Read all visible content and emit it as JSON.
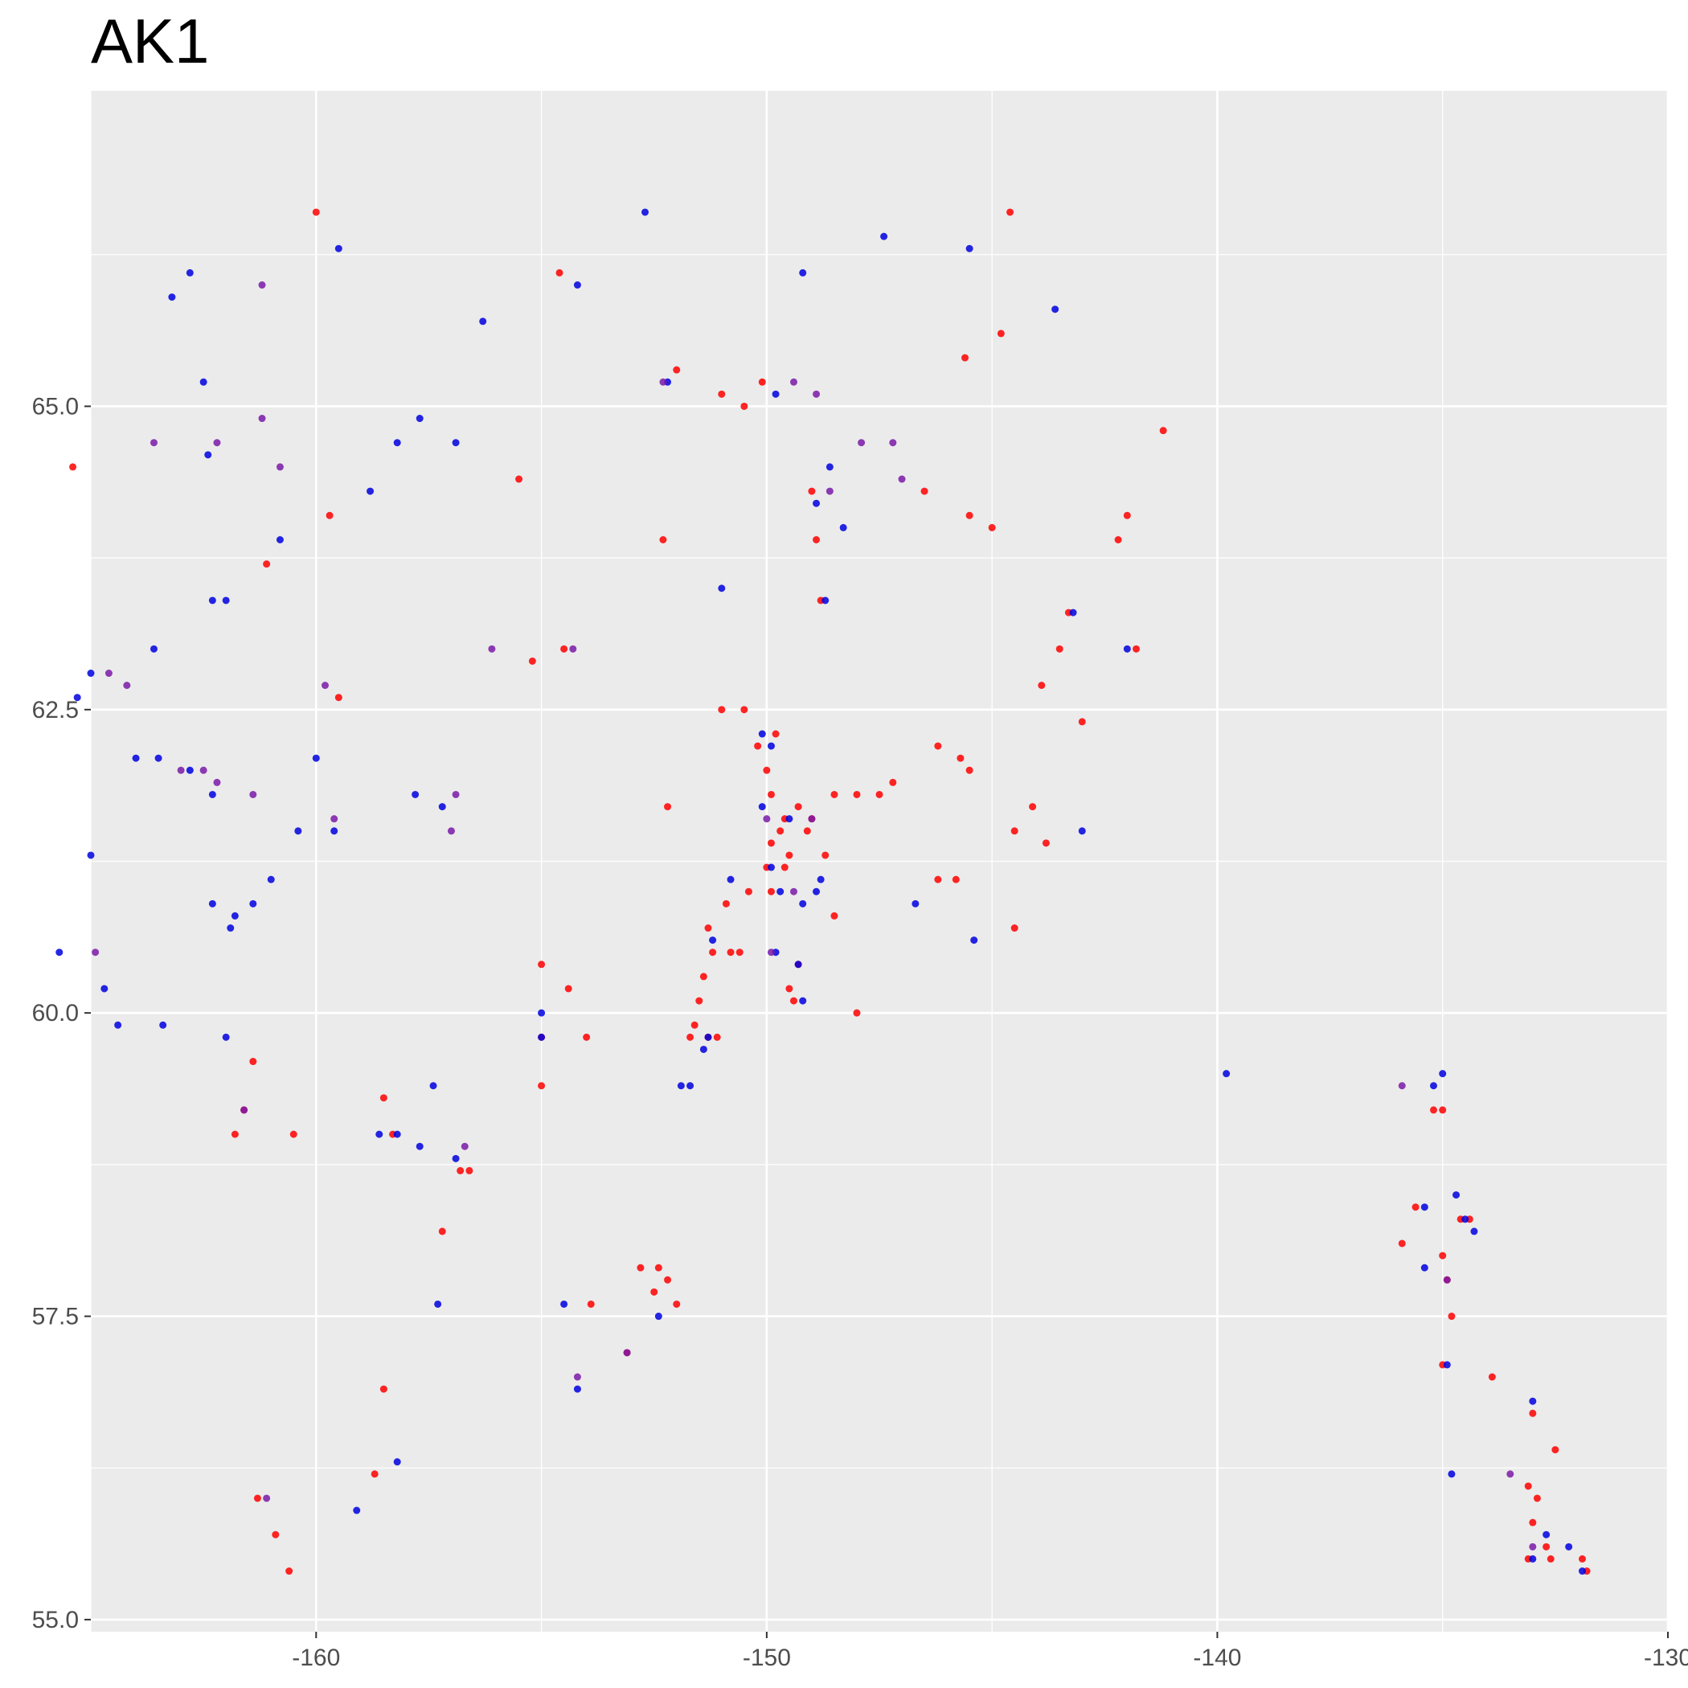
{
  "chart_data": {
    "type": "scatter",
    "title": "AK1",
    "xlabel": "",
    "ylabel": "",
    "xlim": [
      -165,
      -130
    ],
    "ylim": [
      54.9,
      67.6
    ],
    "x_ticks": [
      -160,
      -150,
      -140,
      -130
    ],
    "x_tick_labels": [
      "-160",
      "-150",
      "-140",
      "-130"
    ],
    "y_ticks": [
      55.0,
      57.5,
      60.0,
      62.5,
      65.0
    ],
    "y_tick_labels": [
      "55.0",
      "57.5",
      "60.0",
      "62.5",
      "65.0"
    ],
    "grid": true,
    "legend": "none",
    "colors": {
      "panel": "#ebebeb",
      "grid": "#ffffff",
      "point_red": "#ff0000",
      "point_blue": "#0000e0",
      "point_purple": "#7a1aa8"
    },
    "series": [
      {
        "color": "red",
        "points": [
          [
            -165.4,
            64.5
          ],
          [
            -160.0,
            66.6
          ],
          [
            -154.6,
            66.1
          ],
          [
            -152.0,
            65.3
          ],
          [
            -151.0,
            65.1
          ],
          [
            -150.5,
            65.0
          ],
          [
            -150.1,
            65.2
          ],
          [
            -145.6,
            65.4
          ],
          [
            -144.8,
            65.6
          ],
          [
            -144.6,
            66.6
          ],
          [
            -141.2,
            64.8
          ],
          [
            -161.1,
            63.7
          ],
          [
            -159.7,
            64.1
          ],
          [
            -155.5,
            64.4
          ],
          [
            -152.3,
            63.9
          ],
          [
            -142.2,
            63.9
          ],
          [
            -142.0,
            64.1
          ],
          [
            -143.3,
            63.3
          ],
          [
            -143.5,
            63.0
          ],
          [
            -143.9,
            62.7
          ],
          [
            -141.8,
            63.0
          ],
          [
            -143.0,
            62.4
          ],
          [
            -148.8,
            63.4
          ],
          [
            -148.9,
            63.9
          ],
          [
            -149.0,
            64.3
          ],
          [
            -145.0,
            64.0
          ],
          [
            -145.5,
            64.1
          ],
          [
            -146.5,
            64.3
          ],
          [
            -159.5,
            62.6
          ],
          [
            -155.2,
            62.9
          ],
          [
            -154.5,
            63.0
          ],
          [
            -150.5,
            62.5
          ],
          [
            -151.0,
            62.5
          ],
          [
            -150.2,
            62.2
          ],
          [
            -149.8,
            62.3
          ],
          [
            -150.0,
            62.0
          ],
          [
            -149.9,
            61.8
          ],
          [
            -149.6,
            61.6
          ],
          [
            -149.3,
            61.7
          ],
          [
            -149.0,
            61.6
          ],
          [
            -148.5,
            61.8
          ],
          [
            -147.5,
            61.8
          ],
          [
            -147.2,
            61.9
          ],
          [
            -148.0,
            61.8
          ],
          [
            -149.7,
            61.5
          ],
          [
            -149.9,
            61.4
          ],
          [
            -149.5,
            61.3
          ],
          [
            -150.0,
            61.2
          ],
          [
            -149.6,
            61.2
          ],
          [
            -149.9,
            61.0
          ],
          [
            -149.1,
            61.5
          ],
          [
            -148.7,
            61.3
          ],
          [
            -150.4,
            61.0
          ],
          [
            -146.2,
            62.2
          ],
          [
            -145.7,
            62.1
          ],
          [
            -145.5,
            62.0
          ],
          [
            -144.5,
            61.5
          ],
          [
            -143.8,
            61.4
          ],
          [
            -144.1,
            61.7
          ],
          [
            -152.2,
            61.7
          ],
          [
            -146.2,
            61.1
          ],
          [
            -145.8,
            61.1
          ],
          [
            -144.5,
            60.7
          ],
          [
            -148.5,
            60.8
          ],
          [
            -148.0,
            60.0
          ],
          [
            -151.3,
            60.7
          ],
          [
            -151.2,
            60.5
          ],
          [
            -151.4,
            60.3
          ],
          [
            -151.5,
            60.1
          ],
          [
            -151.6,
            59.9
          ],
          [
            -151.7,
            59.8
          ],
          [
            -151.3,
            59.8
          ],
          [
            -151.1,
            59.8
          ],
          [
            -150.8,
            60.5
          ],
          [
            -150.6,
            60.5
          ],
          [
            -150.9,
            60.9
          ],
          [
            -149.4,
            60.1
          ],
          [
            -149.5,
            60.2
          ],
          [
            -149.3,
            60.4
          ],
          [
            -155.0,
            60.4
          ],
          [
            -154.4,
            60.2
          ],
          [
            -154.0,
            59.8
          ],
          [
            -155.0,
            59.8
          ],
          [
            -155.0,
            59.4
          ],
          [
            -161.4,
            59.6
          ],
          [
            -161.6,
            59.2
          ],
          [
            -161.8,
            59.0
          ],
          [
            -160.5,
            59.0
          ],
          [
            -158.5,
            59.3
          ],
          [
            -158.3,
            59.0
          ],
          [
            -156.8,
            58.7
          ],
          [
            -156.6,
            58.7
          ],
          [
            -157.2,
            58.2
          ],
          [
            -152.4,
            57.9
          ],
          [
            -152.5,
            57.7
          ],
          [
            -152.2,
            57.8
          ],
          [
            -152.0,
            57.6
          ],
          [
            -152.8,
            57.9
          ],
          [
            -153.9,
            57.6
          ],
          [
            -153.1,
            57.2
          ],
          [
            -158.5,
            56.9
          ],
          [
            -158.7,
            56.2
          ],
          [
            -160.9,
            55.7
          ],
          [
            -161.3,
            56.0
          ],
          [
            -160.6,
            55.4
          ],
          [
            -135.9,
            58.1
          ],
          [
            -135.6,
            58.4
          ],
          [
            -135.0,
            58.0
          ],
          [
            -134.6,
            58.3
          ],
          [
            -134.4,
            58.3
          ],
          [
            -135.2,
            59.2
          ],
          [
            -135.0,
            59.2
          ],
          [
            -134.8,
            57.5
          ],
          [
            -134.9,
            57.8
          ],
          [
            -135.0,
            57.1
          ],
          [
            -133.9,
            57.0
          ],
          [
            -133.0,
            56.7
          ],
          [
            -132.5,
            56.4
          ],
          [
            -133.1,
            56.1
          ],
          [
            -132.9,
            56.0
          ],
          [
            -133.0,
            55.8
          ],
          [
            -133.1,
            55.5
          ],
          [
            -132.7,
            55.6
          ],
          [
            -132.6,
            55.5
          ],
          [
            -131.8,
            55.4
          ],
          [
            -131.9,
            55.5
          ]
        ]
      },
      {
        "color": "blue",
        "points": [
          [
            -152.7,
            66.6
          ],
          [
            -159.5,
            66.3
          ],
          [
            -162.8,
            66.1
          ],
          [
            -149.2,
            66.1
          ],
          [
            -147.4,
            66.4
          ],
          [
            -145.5,
            66.3
          ],
          [
            -154.2,
            66.0
          ],
          [
            -163.2,
            65.9
          ],
          [
            -143.6,
            65.8
          ],
          [
            -156.3,
            65.7
          ],
          [
            -162.5,
            65.2
          ],
          [
            -152.2,
            65.2
          ],
          [
            -149.8,
            65.1
          ],
          [
            -157.7,
            64.9
          ],
          [
            -158.2,
            64.7
          ],
          [
            -156.9,
            64.7
          ],
          [
            -162.4,
            64.6
          ],
          [
            -158.8,
            64.3
          ],
          [
            -148.6,
            64.5
          ],
          [
            -148.9,
            64.2
          ],
          [
            -148.3,
            64.0
          ],
          [
            -151.0,
            63.5
          ],
          [
            -148.7,
            63.4
          ],
          [
            -160.8,
            63.9
          ],
          [
            -162.3,
            63.4
          ],
          [
            -162.0,
            63.4
          ],
          [
            -163.6,
            63.0
          ],
          [
            -165.0,
            62.8
          ],
          [
            -165.3,
            62.6
          ],
          [
            -143.2,
            63.3
          ],
          [
            -142.0,
            63.0
          ],
          [
            -143.0,
            61.5
          ],
          [
            -164.0,
            62.1
          ],
          [
            -163.5,
            62.1
          ],
          [
            -162.8,
            62.0
          ],
          [
            -162.3,
            61.8
          ],
          [
            -160.0,
            62.1
          ],
          [
            -157.8,
            61.8
          ],
          [
            -157.2,
            61.7
          ],
          [
            -160.4,
            61.5
          ],
          [
            -159.6,
            61.5
          ],
          [
            -165.0,
            61.3
          ],
          [
            -161.0,
            61.1
          ],
          [
            -150.1,
            62.3
          ],
          [
            -149.9,
            62.2
          ],
          [
            -150.1,
            61.7
          ],
          [
            -149.5,
            61.6
          ],
          [
            -149.9,
            61.2
          ],
          [
            -149.7,
            61.0
          ],
          [
            -148.9,
            61.0
          ],
          [
            -149.2,
            60.9
          ],
          [
            -148.8,
            61.1
          ],
          [
            -150.8,
            61.1
          ],
          [
            -146.7,
            60.9
          ],
          [
            -145.4,
            60.6
          ],
          [
            -162.3,
            60.9
          ],
          [
            -161.8,
            60.8
          ],
          [
            -161.9,
            60.7
          ],
          [
            -161.4,
            60.9
          ],
          [
            -165.7,
            60.5
          ],
          [
            -164.7,
            60.2
          ],
          [
            -164.4,
            59.9
          ],
          [
            -163.4,
            59.9
          ],
          [
            -162.0,
            59.8
          ],
          [
            -149.8,
            60.5
          ],
          [
            -149.3,
            60.4
          ],
          [
            -149.2,
            60.1
          ],
          [
            -151.2,
            60.6
          ],
          [
            -151.3,
            59.8
          ],
          [
            -151.4,
            59.7
          ],
          [
            -151.9,
            59.4
          ],
          [
            -151.7,
            59.4
          ],
          [
            -155.0,
            60.0
          ],
          [
            -155.0,
            59.8
          ],
          [
            -158.6,
            59.0
          ],
          [
            -158.2,
            59.0
          ],
          [
            -157.4,
            59.4
          ],
          [
            -157.7,
            58.9
          ],
          [
            -156.9,
            58.8
          ],
          [
            -157.3,
            57.6
          ],
          [
            -152.4,
            57.5
          ],
          [
            -154.5,
            57.6
          ],
          [
            -154.2,
            56.9
          ],
          [
            -158.2,
            56.3
          ],
          [
            -159.1,
            55.9
          ],
          [
            -139.8,
            59.5
          ],
          [
            -135.2,
            59.4
          ],
          [
            -135.0,
            59.5
          ],
          [
            -135.4,
            58.4
          ],
          [
            -134.7,
            58.5
          ],
          [
            -134.5,
            58.3
          ],
          [
            -134.3,
            58.2
          ],
          [
            -135.4,
            57.9
          ],
          [
            -134.9,
            57.1
          ],
          [
            -134.8,
            56.2
          ],
          [
            -133.0,
            56.8
          ],
          [
            -132.7,
            55.7
          ],
          [
            -133.0,
            55.5
          ],
          [
            -132.2,
            55.6
          ],
          [
            -131.9,
            55.4
          ]
        ]
      },
      {
        "color": "purple",
        "points": [
          [
            -161.2,
            66.0
          ],
          [
            -163.6,
            64.7
          ],
          [
            -161.2,
            64.9
          ],
          [
            -162.2,
            64.7
          ],
          [
            -160.8,
            64.5
          ],
          [
            -152.3,
            65.2
          ],
          [
            -149.4,
            65.2
          ],
          [
            -148.9,
            65.1
          ],
          [
            -159.8,
            62.7
          ],
          [
            -162.2,
            61.9
          ],
          [
            -161.4,
            61.8
          ],
          [
            -157.0,
            61.5
          ],
          [
            -156.9,
            61.8
          ],
          [
            -159.6,
            61.6
          ],
          [
            -149.0,
            61.6
          ],
          [
            -150.0,
            61.6
          ],
          [
            -149.4,
            61.0
          ],
          [
            -149.9,
            60.5
          ],
          [
            -147.9,
            64.7
          ],
          [
            -147.2,
            64.7
          ],
          [
            -147.0,
            64.4
          ],
          [
            -148.6,
            64.3
          ],
          [
            -154.3,
            63.0
          ],
          [
            -156.1,
            63.0
          ],
          [
            -164.6,
            62.8
          ],
          [
            -164.2,
            62.7
          ],
          [
            -163.0,
            62.0
          ],
          [
            -162.5,
            62.0
          ],
          [
            -164.9,
            60.5
          ],
          [
            -161.6,
            59.2
          ],
          [
            -156.7,
            58.9
          ],
          [
            -153.1,
            57.2
          ],
          [
            -154.2,
            57.0
          ],
          [
            -161.1,
            56.0
          ],
          [
            -135.9,
            59.4
          ],
          [
            -134.9,
            57.8
          ],
          [
            -133.5,
            56.2
          ],
          [
            -133.0,
            55.6
          ]
        ]
      }
    ]
  }
}
